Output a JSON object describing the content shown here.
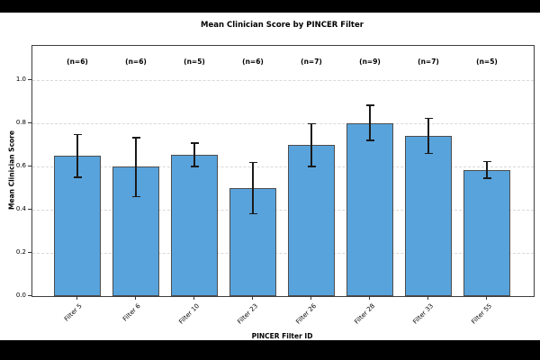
{
  "window": {
    "letterbox_color": "#000000",
    "figure_background": "#ffffff"
  },
  "chart_data": {
    "type": "bar",
    "title": "Mean Clinician Score by PINCER Filter",
    "xlabel": "PINCER Filter ID",
    "ylabel": "Mean Clinician Score",
    "categories": [
      "Filter 5",
      "Filter 6",
      "Filter 10",
      "Filter 23",
      "Filter 26",
      "Filter 28",
      "Filter 33",
      "Filter 55"
    ],
    "values": [
      0.65,
      0.6,
      0.655,
      0.5,
      0.7,
      0.8,
      0.74,
      0.585
    ],
    "error_low": [
      0.55,
      0.46,
      0.6,
      0.38,
      0.6,
      0.72,
      0.66,
      0.545
    ],
    "error_high": [
      0.75,
      0.735,
      0.71,
      0.62,
      0.8,
      0.885,
      0.825,
      0.625
    ],
    "n_labels": [
      "(n=6)",
      "(n=6)",
      "(n=5)",
      "(n=6)",
      "(n=7)",
      "(n=9)",
      "(n=7)",
      "(n=5)"
    ],
    "ytick_labels": [
      "0.0",
      "0.2",
      "0.4",
      "0.6",
      "0.8",
      "1.0"
    ],
    "yticks": [
      0.0,
      0.2,
      0.4,
      0.6,
      0.8,
      1.0
    ],
    "ylim": [
      0,
      1.16
    ],
    "grid": "horizontal dashed at y ticks",
    "legend": "none",
    "bar_color": "#58A3DC",
    "bar_edge_color": "#4d4d4d",
    "error_color": "#1a1a1a"
  }
}
